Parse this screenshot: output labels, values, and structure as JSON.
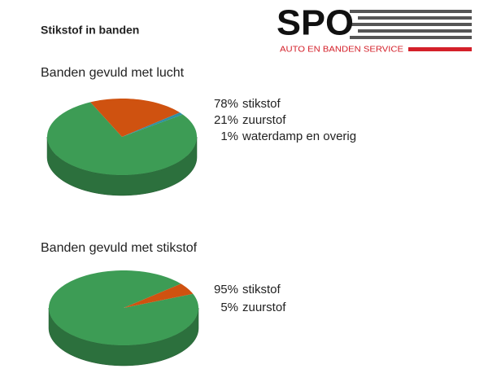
{
  "header": {
    "title": "Stikstof in banden",
    "logo": {
      "text": "SPO",
      "subtitle": "AUTO EN BANDEN SERVICE"
    }
  },
  "chart_data": [
    {
      "type": "pie",
      "title": "Banden gevuld met lucht",
      "categories": [
        "stikstof",
        "zuurstof",
        "waterdamp en overig"
      ],
      "values": [
        78,
        21,
        1
      ],
      "value_labels": [
        "78%",
        "21%",
        "1%"
      ],
      "colors": [
        "#3d9c55",
        "#cf5210",
        "#2e8fa3"
      ]
    },
    {
      "type": "pie",
      "title": "Banden gevuld met stikstof",
      "categories": [
        "stikstof",
        "zuurstof"
      ],
      "values": [
        95,
        5
      ],
      "value_labels": [
        "95%",
        "5%"
      ],
      "colors": [
        "#3d9c55",
        "#cf5210"
      ]
    }
  ]
}
